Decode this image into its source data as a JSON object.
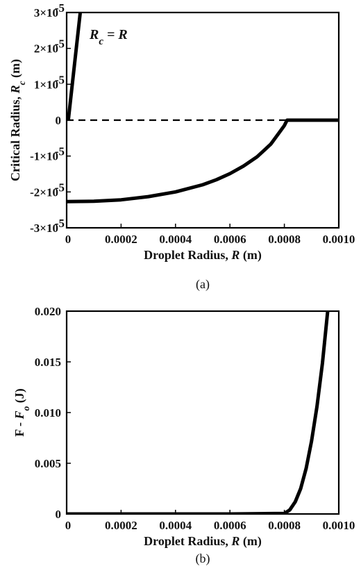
{
  "chart_data": [
    {
      "type": "line",
      "caption": "(a)",
      "xlabel": "Droplet Radius, R (m)",
      "ylabel": "Critical Radius, R_c (m)",
      "xlim": [
        0,
        0.001
      ],
      "ylim": [
        -3e-05,
        3e-05
      ],
      "x_ticks": [
        "0",
        "0.0002",
        "0.0004",
        "0.0006",
        "0.0008",
        "0.0010"
      ],
      "y_ticks": [
        {
          "mantissa": "3×10",
          "exp": "-5",
          "value": 3e-05
        },
        {
          "mantissa": "2×10",
          "exp": "-5",
          "value": 2e-05
        },
        {
          "mantissa": "1×10",
          "exp": "-5",
          "value": 1e-05
        },
        {
          "mantissa": "0",
          "exp": "",
          "value": 0
        },
        {
          "mantissa": "-1×10",
          "exp": "-5",
          "value": -1e-05
        },
        {
          "mantissa": "-2×10",
          "exp": "-5",
          "value": -2e-05
        },
        {
          "mantissa": "-3×10",
          "exp": "-5",
          "value": -3e-05
        }
      ],
      "annotations": [
        {
          "text": "R_c = R"
        }
      ],
      "series": [
        {
          "style": "solid",
          "x": [
            6e-06,
            5e-05
          ],
          "y": [
            0,
            3e-05
          ]
        },
        {
          "style": "dashed",
          "x": [
            0,
            0.001
          ],
          "y": [
            0,
            0
          ]
        },
        {
          "style": "solid",
          "x": [
            0,
            0.0001,
            0.0002,
            0.0003,
            0.0004,
            0.0005,
            0.00055,
            0.0006,
            0.00065,
            0.0007,
            0.00075,
            0.0008,
            0.00081,
            0.001
          ],
          "y": [
            -2.27e-05,
            -2.26e-05,
            -2.22e-05,
            -2.13e-05,
            -2e-05,
            -1.8e-05,
            -1.66e-05,
            -1.49e-05,
            -1.28e-05,
            -1.02e-05,
            -6.7e-06,
            -1.5e-06,
            0,
            0
          ]
        }
      ]
    },
    {
      "type": "line",
      "caption": "(b)",
      "xlabel": "Droplet Radius, R (m)",
      "ylabel": "F - F_o (J)",
      "xlim": [
        0,
        0.001
      ],
      "ylim": [
        0,
        0.02
      ],
      "x_ticks": [
        "0",
        "0.0002",
        "0.0004",
        "0.0006",
        "0.0008",
        "0.0010"
      ],
      "y_ticks": [
        "0",
        "0.005",
        "0.010",
        "0.015",
        "0.020"
      ],
      "series": [
        {
          "style": "solid",
          "x": [
            0,
            0.0006,
            0.0008,
            0.00082,
            0.00084,
            0.00086,
            0.00088,
            0.0009,
            0.00092,
            0.00094,
            0.00096
          ],
          "y": [
            0,
            0,
            5e-05,
            0.0004,
            0.0012,
            0.0025,
            0.0045,
            0.0072,
            0.0106,
            0.0149,
            0.0202
          ]
        }
      ]
    }
  ]
}
